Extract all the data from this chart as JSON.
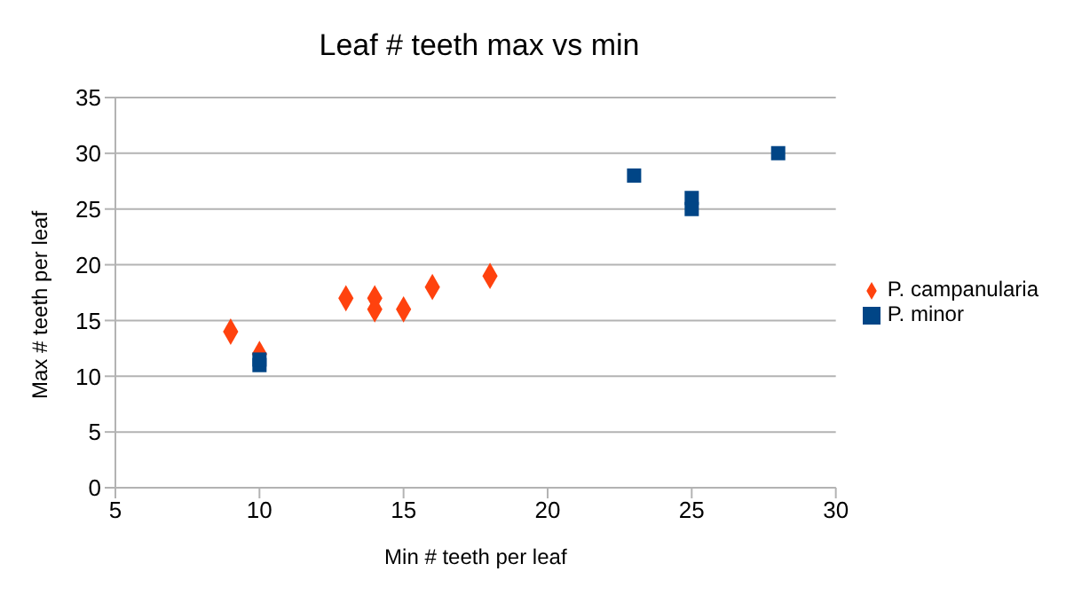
{
  "chart_data": {
    "type": "scatter",
    "title": "Leaf # teeth max vs min",
    "xlabel": "Min # teeth per leaf",
    "ylabel": "Max # teeth per leaf",
    "xlim": [
      5,
      30
    ],
    "xticks": [
      5,
      10,
      15,
      20,
      25,
      30
    ],
    "ylim": [
      0,
      35
    ],
    "yticks": [
      0,
      5,
      10,
      15,
      20,
      25,
      30,
      35
    ],
    "grid": "y",
    "legend": "right",
    "series": [
      {
        "name": "P. minor",
        "color": "#004586",
        "marker": "square",
        "x": [
          10,
          10,
          23,
          25,
          25,
          28
        ],
        "values": [
          11,
          11.5,
          28,
          26,
          25,
          30
        ]
      },
      {
        "name": "P. campanularia",
        "color": "#ff420e",
        "marker": "diamond",
        "x": [
          9,
          10,
          13,
          14,
          14,
          15,
          16,
          18
        ],
        "values": [
          14,
          12,
          17,
          17,
          16,
          16,
          18,
          19
        ]
      }
    ]
  }
}
